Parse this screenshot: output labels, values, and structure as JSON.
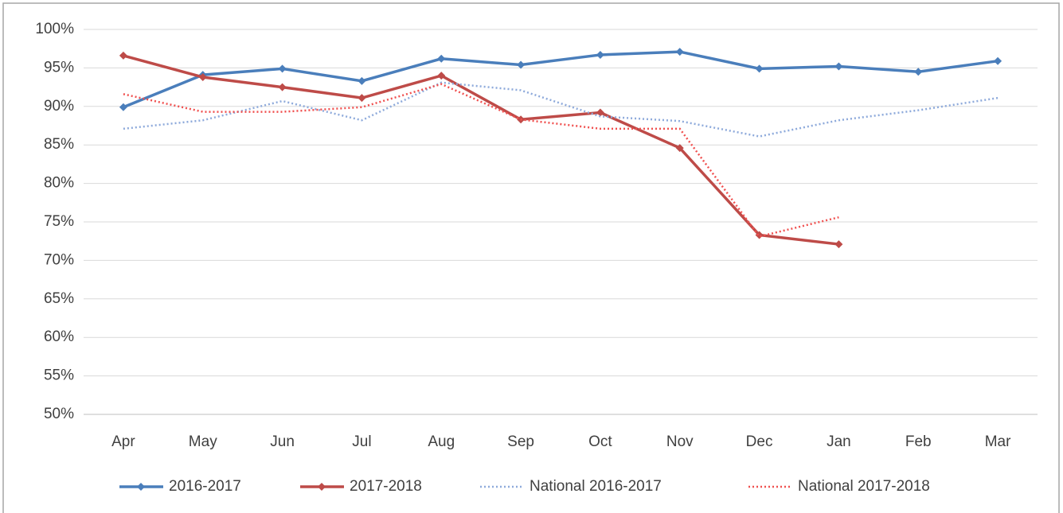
{
  "chart_data": {
    "type": "line",
    "categories": [
      "Apr",
      "May",
      "Jun",
      "Jul",
      "Aug",
      "Sep",
      "Oct",
      "Nov",
      "Dec",
      "Jan",
      "Feb",
      "Mar"
    ],
    "series": [
      {
        "name": "2016-2017",
        "color": "#4a7ebb",
        "line_style": "solid",
        "markers": true,
        "values": [
          89.9,
          94.1,
          94.9,
          93.3,
          96.2,
          95.4,
          96.7,
          97.1,
          94.9,
          95.2,
          94.5,
          95.9
        ]
      },
      {
        "name": "2017-2018",
        "color": "#be4b48",
        "line_style": "solid",
        "markers": true,
        "values": [
          96.6,
          93.8,
          92.5,
          91.1,
          94.0,
          88.3,
          89.2,
          84.6,
          73.3,
          72.1,
          null,
          null
        ]
      },
      {
        "name": "National 2016-2017",
        "color": "#8eaadb",
        "line_style": "dotted",
        "markers": false,
        "values": [
          87.1,
          88.2,
          90.7,
          88.2,
          93.1,
          92.1,
          88.7,
          88.1,
          86.1,
          88.2,
          89.5,
          91.1
        ]
      },
      {
        "name": "National 2017-2018",
        "color": "#f0504f",
        "line_style": "dotted",
        "markers": false,
        "values": [
          91.6,
          89.3,
          89.3,
          89.9,
          92.9,
          88.3,
          87.1,
          87.1,
          73.1,
          75.6,
          null,
          null
        ]
      }
    ],
    "ylim": [
      50,
      100
    ],
    "yticks": [
      {
        "value": 50,
        "label": "50%"
      },
      {
        "value": 55,
        "label": "55%"
      },
      {
        "value": 60,
        "label": "60%"
      },
      {
        "value": 65,
        "label": "65%"
      },
      {
        "value": 70,
        "label": "70%"
      },
      {
        "value": 75,
        "label": "75%"
      },
      {
        "value": 80,
        "label": "80%"
      },
      {
        "value": 85,
        "label": "85%"
      },
      {
        "value": 90,
        "label": "90%"
      },
      {
        "value": 95,
        "label": "95%"
      },
      {
        "value": 100,
        "label": "100%"
      }
    ],
    "grid": true,
    "legend": "bottom"
  }
}
